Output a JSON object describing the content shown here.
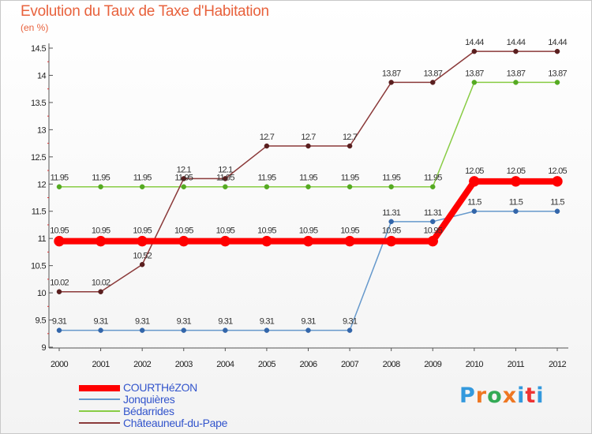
{
  "title": "Evolution du Taux de Taxe d'Habitation",
  "unit": "(en %)",
  "logo": "Proxiti",
  "chart_data": {
    "type": "line",
    "x": [
      2000,
      2001,
      2002,
      2003,
      2004,
      2005,
      2006,
      2007,
      2008,
      2009,
      2010,
      2011,
      2012
    ],
    "ylim": [
      9,
      14.5
    ],
    "yticks": [
      9,
      9.5,
      10,
      10.5,
      11,
      11.5,
      12,
      12.5,
      13,
      13.5,
      14,
      14.5
    ],
    "ytick_labels": [
      "9",
      "9.5",
      "10",
      "10.5",
      "11",
      "11.5",
      "12",
      "12.5",
      "13",
      "13.5",
      "14",
      "14.5"
    ],
    "grid": false,
    "legend": "bottom-left",
    "series": [
      {
        "name": "COURTHéZON",
        "color": "#ff0000",
        "values": [
          10.95,
          10.95,
          10.95,
          10.95,
          10.95,
          10.95,
          10.95,
          10.95,
          10.95,
          10.95,
          12.05,
          12.05,
          12.05
        ],
        "labels": [
          "10.95",
          "10.95",
          "10.95",
          "10.95",
          "10.95",
          "10.95",
          "10.95",
          "10.95",
          "10.95",
          "10.95",
          "12.05",
          "12.05",
          "12.05"
        ]
      },
      {
        "name": "Jonquières",
        "color": "#6699cc",
        "values": [
          9.31,
          9.31,
          9.31,
          9.31,
          9.31,
          9.31,
          9.31,
          9.31,
          11.31,
          11.31,
          11.5,
          11.5,
          11.5
        ],
        "labels": [
          "9.31",
          "9.31",
          "9.31",
          "9.31",
          "9.31",
          "9.31",
          "9.31",
          "9.31",
          "11.31",
          "11.31",
          "11.5",
          "11.5",
          "11.5"
        ]
      },
      {
        "name": "Bédarrides",
        "color": "#88cc44",
        "values": [
          11.95,
          11.95,
          11.95,
          11.95,
          11.95,
          11.95,
          11.95,
          11.95,
          11.95,
          11.95,
          13.87,
          13.87,
          13.87
        ],
        "labels": [
          "11.95",
          "11.95",
          "11.95",
          "11.95",
          "11.95",
          "11.95",
          "11.95",
          "11.95",
          "11.95",
          "11.95",
          "13.87",
          "13.87",
          "13.87"
        ]
      },
      {
        "name": "Châteauneuf-du-Pape",
        "color": "#8b3a3a",
        "values": [
          10.02,
          10.02,
          10.52,
          12.1,
          12.1,
          12.7,
          12.7,
          12.7,
          13.87,
          13.87,
          14.44,
          14.44,
          14.44
        ],
        "labels": [
          "10.02",
          "10.02",
          "10.52",
          "12.1",
          "12.1",
          "12.7",
          "12.7",
          "12.7",
          "13.87",
          "13.87",
          "14.44",
          "14.44",
          "14.44"
        ]
      }
    ]
  }
}
